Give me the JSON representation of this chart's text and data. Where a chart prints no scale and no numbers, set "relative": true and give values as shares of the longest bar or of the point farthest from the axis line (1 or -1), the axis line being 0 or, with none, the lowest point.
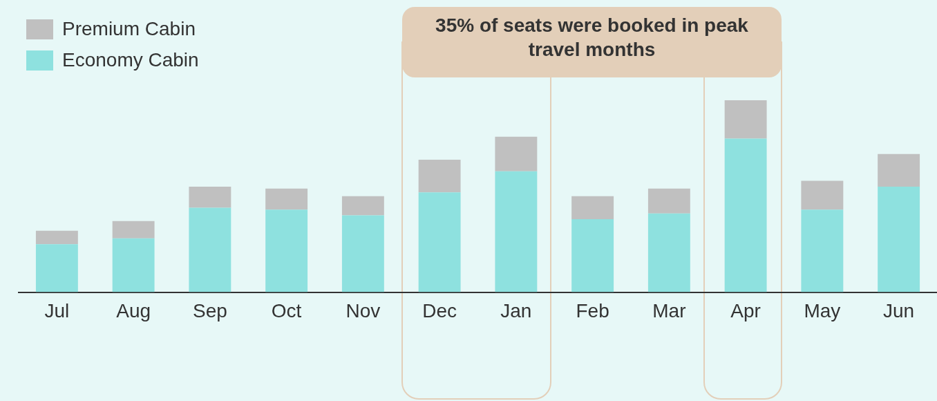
{
  "chart_data": {
    "type": "bar",
    "stacked": true,
    "relative": true,
    "legend": "top left",
    "categories": [
      "Jul",
      "Aug",
      "Sep",
      "Oct",
      "Nov",
      "Dec",
      "Jan",
      "Feb",
      "Mar",
      "Apr",
      "May",
      "Jun"
    ],
    "series": [
      {
        "name": "Economy Cabin",
        "color": "#8ee1df",
        "values": [
          0.25,
          0.28,
          0.44,
          0.43,
          0.4,
          0.52,
          0.63,
          0.38,
          0.41,
          0.8,
          0.43,
          0.55
        ]
      },
      {
        "name": "Premium Cabin",
        "color": "#c0c0c0",
        "values": [
          0.07,
          0.09,
          0.11,
          0.11,
          0.1,
          0.17,
          0.18,
          0.12,
          0.13,
          0.2,
          0.15,
          0.17
        ]
      }
    ],
    "annotations": [
      "35% of seats were booked in peak travel months"
    ]
  }
}
